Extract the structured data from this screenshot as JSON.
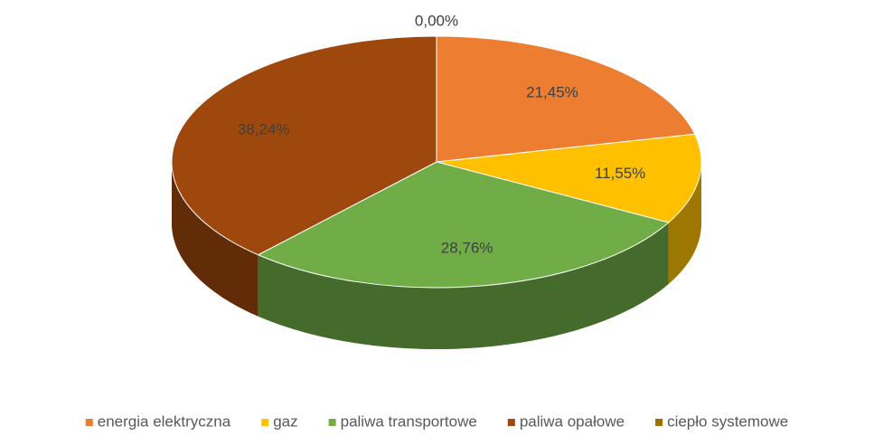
{
  "chart_data": {
    "type": "pie",
    "categories": [
      "energia elektryczna",
      "gaz",
      "paliwa transportowe",
      "paliwa opałowe",
      "ciepło systemowe"
    ],
    "values": [
      21.45,
      11.55,
      28.76,
      38.24,
      0.0
    ],
    "value_labels": [
      "21,45%",
      "11,55%",
      "28,76%",
      "38,24%",
      "0,00%"
    ],
    "colors": [
      "#ED7D31",
      "#FFC000",
      "#70AD47",
      "#9E480E",
      "#997300"
    ],
    "legend": "bottom"
  }
}
